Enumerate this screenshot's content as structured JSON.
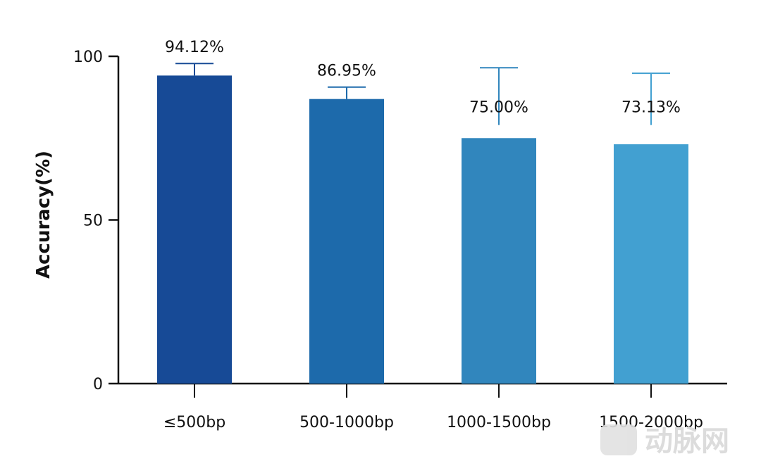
{
  "chart_data": {
    "type": "bar",
    "categories": [
      "≤500bp",
      "500-1000bp",
      "1000-1500bp",
      "1500-2000bp"
    ],
    "values": [
      94.12,
      86.95,
      75.0,
      73.13
    ],
    "value_labels": [
      "94.12%",
      "86.95%",
      "75.00%",
      "73.13%"
    ],
    "error_upper": [
      97.8,
      90.6,
      96.5,
      94.8
    ],
    "error_lower": [
      94.12,
      86.95,
      79.0,
      79.0
    ],
    "colors": [
      "#174a96",
      "#1d6aab",
      "#3186bd",
      "#42a0d1"
    ],
    "ylabel": "Accuracy(%)",
    "xlabel": "",
    "ylim": [
      0,
      100
    ],
    "yticks": [
      "0",
      "50",
      "100"
    ],
    "grid": false,
    "legend": "none"
  },
  "watermark": {
    "text": "动脉网",
    "logo_icon": "vb-logo-icon"
  }
}
